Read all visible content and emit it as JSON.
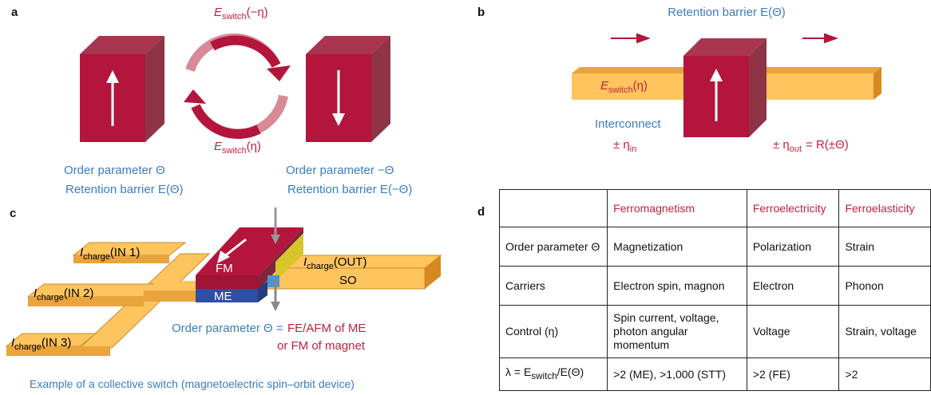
{
  "panels": {
    "a": {
      "label": "a",
      "top_energy": {
        "symbol": "E",
        "sub": "switch",
        "arg": "(−η)"
      },
      "bottom_energy": {
        "symbol": "E",
        "sub": "switch",
        "arg": "(η)"
      },
      "left": {
        "order": "Order parameter Θ",
        "barrier": "Retention barrier E(Θ)"
      },
      "right": {
        "order": "Order parameter −Θ",
        "barrier": "Retention barrier E(−Θ)"
      }
    },
    "b": {
      "label": "b",
      "barrier": "Retention barrier E(Θ)",
      "energy": {
        "symbol": "E",
        "sub": "switch",
        "arg": "(η)"
      },
      "interconnect": "Interconnect",
      "eta_in": {
        "symbol": "± η",
        "sub": "in"
      },
      "eta_out": {
        "symbol": "± η",
        "sub": "out",
        "arg": "= R(±Θ)"
      }
    },
    "c": {
      "label": "c",
      "inputs": [
        {
          "symbol": "I",
          "sub": "charge",
          "arg": "(IN 1)"
        },
        {
          "symbol": "I",
          "sub": "charge",
          "arg": "(IN 2)"
        },
        {
          "symbol": "I",
          "sub": "charge",
          "arg": "(IN 3)"
        }
      ],
      "output": {
        "symbol": "I",
        "sub": "charge",
        "arg": "(OUT)"
      },
      "fm": "FM",
      "me": "ME",
      "so": "SO",
      "order": "Order parameter Θ =",
      "order_value": [
        "FE/AFM of ME",
        "or FM of magnet"
      ],
      "caption": "Example of a collective switch (magnetoelectric spin–orbit device)"
    },
    "d": {
      "label": "d",
      "header": [
        "Ferromagnetism",
        "Ferroelectricity",
        "Ferroelasticity"
      ],
      "rows": [
        [
          "Order parameter Θ",
          "Magnetization",
          "Polarization",
          "Strain"
        ],
        [
          "Carriers",
          "Electron spin, magnon",
          "Electron",
          "Phonon"
        ],
        [
          "Control (η)",
          "Spin current, voltage, photon angular momentum",
          "Voltage",
          "Strain, voltage"
        ]
      ],
      "lambda_row": {
        "label": {
          "pre": "λ = E",
          "sub": "switch",
          "post": "/E(Θ)"
        },
        "cells": [
          ">2 (ME), >1,000 (STT)",
          ">2 (FE)",
          ">2"
        ]
      }
    }
  }
}
